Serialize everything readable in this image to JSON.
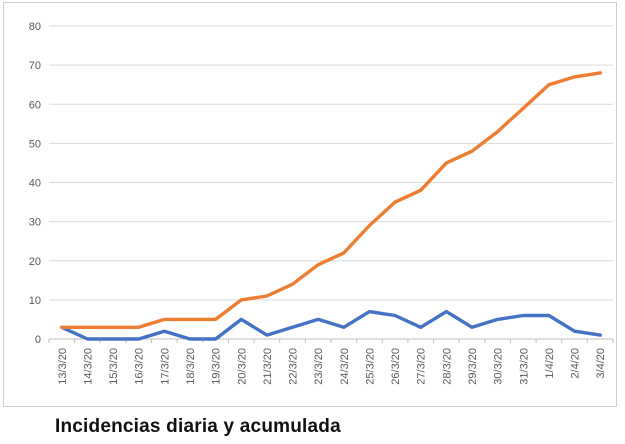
{
  "figure": {
    "caption": "Incidencias diaria y acumulada"
  },
  "colors": {
    "gridline": "#d9d9d9",
    "axis_line": "#bfbfbf",
    "tick": "#bfbfbf",
    "axis_text": "#595959",
    "caption_text": "#111111",
    "series_diaria": "#4472C4",
    "series_acumulada": "#ED7D31",
    "border": "#cfcfcf",
    "background": "#ffffff"
  },
  "chart_data": {
    "type": "line",
    "title": "Incidencias diaria y acumulada",
    "xlabel": "",
    "ylabel": "",
    "ylim": [
      0,
      80
    ],
    "ytick_step": 10,
    "ytick_labels": [
      "0",
      "10",
      "20",
      "30",
      "40",
      "50",
      "60",
      "70",
      "80"
    ],
    "grid": true,
    "legend": "none",
    "x_label_rotation": -90,
    "categories": [
      "13/3/20",
      "14/3/20",
      "15/3/20",
      "16/3/20",
      "17/3/20",
      "18/3/20",
      "19/3/20",
      "20/3/20",
      "21/3/20",
      "22/3/20",
      "23/3/20",
      "24/3/20",
      "25/3/20",
      "26/3/20",
      "27/3/20",
      "28/3/20",
      "29/3/20",
      "30/3/20",
      "31/3/20",
      "1/4/20",
      "2/4/20",
      "3/4/20"
    ],
    "series": [
      {
        "name": "diaria",
        "color": "#4472C4",
        "values": [
          3,
          0,
          0,
          0,
          2,
          0,
          0,
          5,
          1,
          3,
          5,
          3,
          7,
          6,
          3,
          7,
          3,
          5,
          6,
          6,
          2,
          1
        ]
      },
      {
        "name": "acumulada",
        "color": "#ED7D31",
        "values": [
          3,
          3,
          3,
          3,
          5,
          5,
          5,
          10,
          11,
          14,
          19,
          22,
          29,
          35,
          38,
          45,
          48,
          53,
          59,
          65,
          67,
          68
        ]
      }
    ]
  }
}
